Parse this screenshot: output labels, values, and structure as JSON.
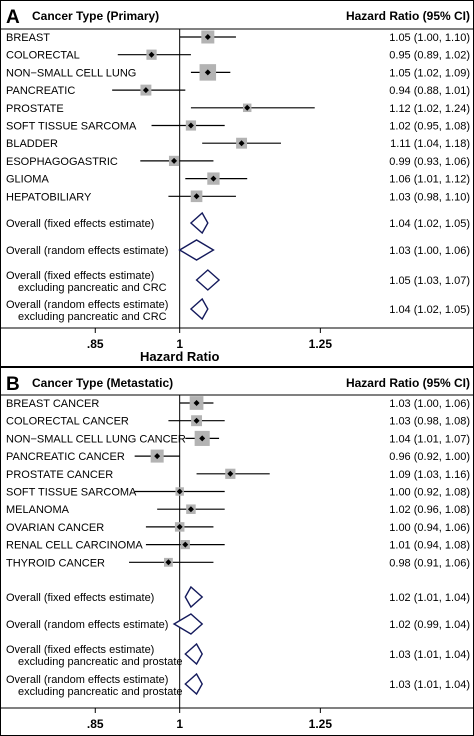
{
  "chart_data": [
    {
      "type": "forest",
      "panel": "A",
      "header_left": "Cancer Type (Primary)",
      "header_right": "Hazard Ratio (95% CI)",
      "xlabel": "Hazard Ratio",
      "xlim": [
        0.75,
        1.34
      ],
      "ticks": [
        {
          "value": 0.85,
          "label": ".85"
        },
        {
          "value": 1,
          "label": "1"
        },
        {
          "value": 1.25,
          "label": "1.25"
        }
      ],
      "reference_line": 1,
      "rows": [
        {
          "label": [
            "BREAST"
          ],
          "hr": 1.05,
          "lo": 1.0,
          "hi": 1.1,
          "ci_text": "1.05 (1.00, 1.10)",
          "kind": "study",
          "weight": 1.0
        },
        {
          "label": [
            "COLORECTAL"
          ],
          "hr": 0.95,
          "lo": 0.89,
          "hi": 1.02,
          "ci_text": "0.95 (0.89, 1.02)",
          "kind": "study",
          "weight": 0.6
        },
        {
          "label": [
            "NON−SMALL CELL LUNG"
          ],
          "hr": 1.05,
          "lo": 1.02,
          "hi": 1.09,
          "ci_text": "1.05 (1.02, 1.09)",
          "kind": "study",
          "weight": 1.5
        },
        {
          "label": [
            "PANCREATIC"
          ],
          "hr": 0.94,
          "lo": 0.88,
          "hi": 1.01,
          "ci_text": "0.94 (0.88, 1.01)",
          "kind": "study",
          "weight": 0.7
        },
        {
          "label": [
            "PROSTATE"
          ],
          "hr": 1.12,
          "lo": 1.02,
          "hi": 1.24,
          "ci_text": "1.12 (1.02, 1.24)",
          "kind": "study",
          "weight": 0.35
        },
        {
          "label": [
            "SOFT TISSUE SARCOMA"
          ],
          "hr": 1.02,
          "lo": 0.95,
          "hi": 1.08,
          "ci_text": "1.02 (0.95, 1.08)",
          "kind": "study",
          "weight": 0.6
        },
        {
          "label": [
            "BLADDER"
          ],
          "hr": 1.11,
          "lo": 1.04,
          "hi": 1.18,
          "ci_text": "1.11 (1.04, 1.18)",
          "kind": "study",
          "weight": 0.7
        },
        {
          "label": [
            "ESOPHAGOGASTRIC"
          ],
          "hr": 0.99,
          "lo": 0.93,
          "hi": 1.06,
          "ci_text": "0.99 (0.93, 1.06)",
          "kind": "study",
          "weight": 0.6
        },
        {
          "label": [
            "GLIOMA"
          ],
          "hr": 1.06,
          "lo": 1.01,
          "hi": 1.12,
          "ci_text": "1.06 (1.01, 1.12)",
          "kind": "study",
          "weight": 0.9
        },
        {
          "label": [
            "HEPATOBILIARY"
          ],
          "hr": 1.03,
          "lo": 0.98,
          "hi": 1.1,
          "ci_text": "1.03 (0.98, 1.10)",
          "kind": "study",
          "weight": 0.8
        },
        {
          "label": [
            "Overall (fixed effects estimate)"
          ],
          "hr": 1.04,
          "lo": 1.02,
          "hi": 1.05,
          "ci_text": "1.04 (1.02, 1.05)",
          "kind": "summary"
        },
        {
          "label": [
            "Overall (random effects estimate)"
          ],
          "hr": 1.03,
          "lo": 1.0,
          "hi": 1.06,
          "ci_text": "1.03 (1.00, 1.06)",
          "kind": "summary"
        },
        {
          "label": [
            "Overall (fixed effects estimate)",
            "excluding pancreatic and CRC"
          ],
          "hr": 1.05,
          "lo": 1.03,
          "hi": 1.07,
          "ci_text": "1.05 (1.03, 1.07)",
          "kind": "summary"
        },
        {
          "label": [
            "Overall (random effects estimate)",
            "excluding pancreatic and CRC"
          ],
          "hr": 1.04,
          "lo": 1.02,
          "hi": 1.05,
          "ci_text": "1.04 (1.02, 1.05)",
          "kind": "summary"
        }
      ]
    },
    {
      "type": "forest",
      "panel": "B",
      "header_left": "Cancer Type (Metastatic)",
      "header_right": "Hazard Ratio (95% CI)",
      "xlabel": "",
      "xlim": [
        0.75,
        1.34
      ],
      "ticks": [
        {
          "value": 0.85,
          "label": ".85"
        },
        {
          "value": 1,
          "label": "1"
        },
        {
          "value": 1.25,
          "label": "1.25"
        }
      ],
      "reference_line": 1,
      "rows": [
        {
          "label": [
            "BREAST CANCER"
          ],
          "hr": 1.03,
          "lo": 1.0,
          "hi": 1.06,
          "ci_text": "1.03 (1.00, 1.06)",
          "kind": "study",
          "weight": 1.1
        },
        {
          "label": [
            "COLORECTAL CANCER"
          ],
          "hr": 1.03,
          "lo": 0.98,
          "hi": 1.08,
          "ci_text": "1.03 (0.98, 1.08)",
          "kind": "study",
          "weight": 0.7
        },
        {
          "label": [
            "NON−SMALL CELL LUNG CANCER"
          ],
          "hr": 1.04,
          "lo": 1.01,
          "hi": 1.07,
          "ci_text": "1.04 (1.01, 1.07)",
          "kind": "study",
          "weight": 1.3
        },
        {
          "label": [
            "PANCREATIC CANCER"
          ],
          "hr": 0.96,
          "lo": 0.92,
          "hi": 1.0,
          "ci_text": "0.96 (0.92, 1.00)",
          "kind": "study",
          "weight": 1.0
        },
        {
          "label": [
            "PROSTATE CANCER"
          ],
          "hr": 1.09,
          "lo": 1.03,
          "hi": 1.16,
          "ci_text": "1.09 (1.03, 1.16)",
          "kind": "study",
          "weight": 0.6
        },
        {
          "label": [
            "SOFT TISSUE SARCOMA"
          ],
          "hr": 1.0,
          "lo": 0.92,
          "hi": 1.08,
          "ci_text": "1.00 (0.92, 1.08)",
          "kind": "study",
          "weight": 0.35
        },
        {
          "label": [
            "MELANOMA"
          ],
          "hr": 1.02,
          "lo": 0.96,
          "hi": 1.08,
          "ci_text": "1.02 (0.96, 1.08)",
          "kind": "study",
          "weight": 0.5
        },
        {
          "label": [
            "OVARIAN CANCER"
          ],
          "hr": 1.0,
          "lo": 0.94,
          "hi": 1.06,
          "ci_text": "1.00 (0.94, 1.06)",
          "kind": "study",
          "weight": 0.5
        },
        {
          "label": [
            "RENAL CELL CARCINOMA"
          ],
          "hr": 1.01,
          "lo": 0.94,
          "hi": 1.08,
          "ci_text": "1.01 (0.94, 1.08)",
          "kind": "study",
          "weight": 0.45
        },
        {
          "label": [
            "THYROID CANCER"
          ],
          "hr": 0.98,
          "lo": 0.91,
          "hi": 1.06,
          "ci_text": "0.98 (0.91, 1.06)",
          "kind": "study",
          "weight": 0.4
        },
        {
          "label": [
            "Overall (fixed effects estimate)"
          ],
          "hr": 1.02,
          "lo": 1.01,
          "hi": 1.04,
          "ci_text": "1.02 (1.01, 1.04)",
          "kind": "summary"
        },
        {
          "label": [
            "Overall (random effects estimate)"
          ],
          "hr": 1.02,
          "lo": 0.99,
          "hi": 1.04,
          "ci_text": "1.02 (0.99, 1.04)",
          "kind": "summary"
        },
        {
          "label": [
            "Overall (fixed effects estimate)",
            "excluding pancreatic and prostate"
          ],
          "hr": 1.03,
          "lo": 1.01,
          "hi": 1.04,
          "ci_text": "1.03 (1.01, 1.04)",
          "kind": "summary"
        },
        {
          "label": [
            "Overall (random effects estimate)",
            "excluding pancreatic and prostate"
          ],
          "hr": 1.03,
          "lo": 1.01,
          "hi": 1.04,
          "ci_text": "1.03 (1.01, 1.04)",
          "kind": "summary"
        }
      ]
    }
  ],
  "colors": {
    "box": "#b3b3b3",
    "diamond_stroke": "#141a5c",
    "line": "#000000"
  }
}
